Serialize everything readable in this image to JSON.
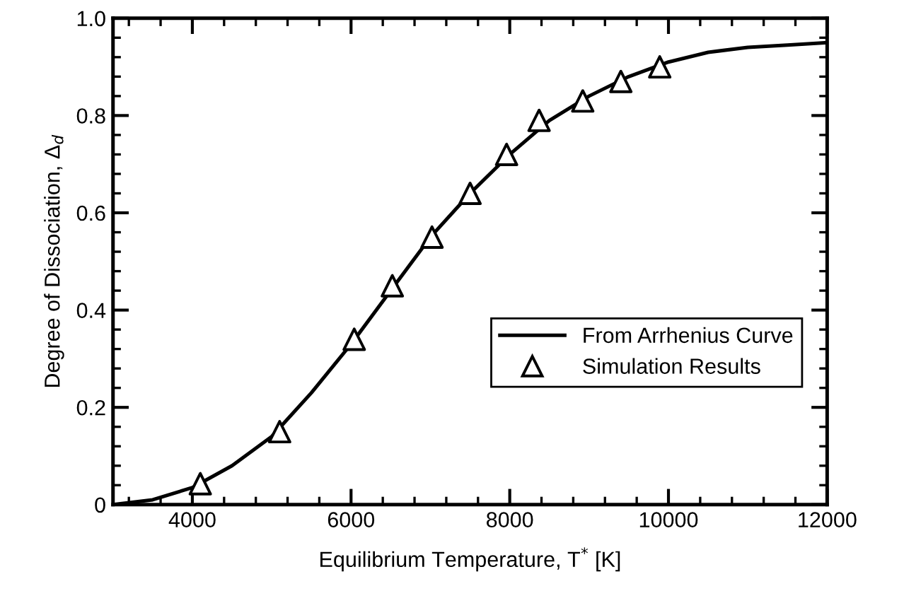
{
  "chart_data": {
    "type": "line",
    "xlabel": "Equilibrium Temperature, T$^{*}$ [K]",
    "ylabel": "Degree of Dissociation, Δ$_{d}$",
    "series": [
      {
        "name": "From Arrhenius Curve",
        "color": "#000000",
        "marker": "none",
        "line_style": "solid",
        "x": [
          3000,
          3500,
          4000,
          4500,
          5000,
          5500,
          6000,
          6500,
          7000,
          7500,
          8000,
          8500,
          9000,
          9500,
          10000,
          10500,
          11000,
          11500,
          12000
        ],
        "values": [
          0.0,
          0.01,
          0.035,
          0.08,
          0.14,
          0.23,
          0.33,
          0.44,
          0.55,
          0.64,
          0.72,
          0.79,
          0.84,
          0.88,
          0.91,
          0.93,
          0.94,
          0.945,
          0.95
        ]
      },
      {
        "name": "Simulation Results",
        "type": "scatter",
        "color": "#000000",
        "marker": "triangle",
        "x": [
          4100,
          5100,
          6040,
          6520,
          7020,
          7500,
          7960,
          8370,
          8920,
          9400,
          9890
        ],
        "values": [
          0.043,
          0.15,
          0.34,
          0.45,
          0.55,
          0.64,
          0.72,
          0.79,
          0.83,
          0.87,
          0.9
        ]
      }
    ],
    "xlim": [
      3000,
      12000
    ],
    "xticks": [
      4000,
      6000,
      8000,
      10000,
      12000
    ],
    "ylim": [
      0,
      1.0
    ],
    "yticks": [
      0,
      0.2,
      0.4,
      0.6,
      0.8,
      {
        "value": 1.0,
        "label": "1.0"
      }
    ],
    "grid": false,
    "legend": "bottom right"
  }
}
